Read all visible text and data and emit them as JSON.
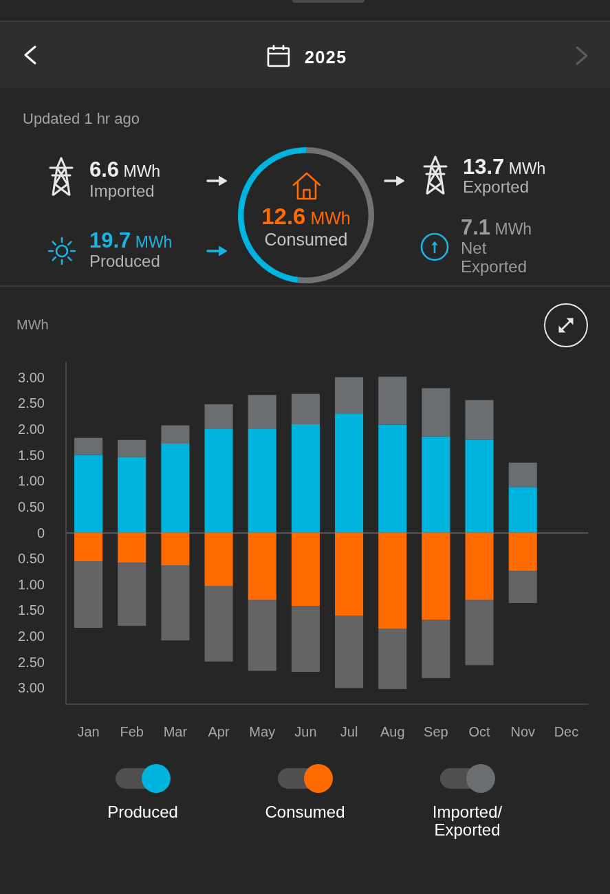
{
  "chart_data": [
    {
      "type": "other",
      "title": "2025",
      "subtitle": "Updated 1 hr ago",
      "annotations": [
        "6.6 MWh",
        "Imported",
        "13.7 MWh",
        "Exported",
        "19.7 MWh",
        "Produced",
        "7.1 MWh",
        "Net Exported"
      ]
    },
    {
      "type": "donut",
      "categories": [
        null,
        null
      ],
      "values": [
        48,
        52
      ],
      "colors": [
        "#00b4e0",
        "#707376"
      ],
      "annotations": [
        "12.6 MWh",
        "Consumed"
      ]
    },
    {
      "type": "bar",
      "ylabel": "MWh",
      "categories": [
        "Jan",
        "Feb",
        "Mar",
        "Apr",
        "May",
        "Jun",
        "Jul",
        "Aug",
        "Sep",
        "Oct",
        "Nov",
        "Dec"
      ],
      "stacked": true,
      "series": [
        {
          "name": "Produced",
          "color": "#00b4e0",
          "values": [
            1.5,
            1.46,
            1.72,
            2.0,
            2.0,
            2.09,
            2.29,
            2.08,
            1.86,
            1.79,
            0.88,
            null
          ]
        },
        {
          "name": "Consumed",
          "color": "#ff6b00",
          "values": [
            -0.55,
            -0.58,
            -0.63,
            -1.03,
            -1.3,
            -1.42,
            -1.6,
            -1.86,
            -1.68,
            -1.3,
            -0.74,
            null
          ]
        },
        {
          "name": "Imported/Exported",
          "color": "#6b6e71",
          "values": [
            0.33,
            0.33,
            0.35,
            0.48,
            0.66,
            0.59,
            0.71,
            0.93,
            0.93,
            0.77,
            0.47,
            null
          ]
        },
        {
          "color": "#646466",
          "values": [
            -1.29,
            -1.22,
            -1.45,
            -1.46,
            -1.37,
            -1.27,
            -1.4,
            -1.16,
            -1.13,
            -1.26,
            -0.62,
            null
          ]
        }
      ],
      "ylim": [
        -3.3,
        3.3
      ],
      "yticks": [
        {
          "value": -3,
          "label": "3.00"
        },
        {
          "value": -2.5,
          "label": "2.50"
        },
        {
          "value": -2,
          "label": "2.00"
        },
        {
          "value": -1.5,
          "label": "1.50"
        },
        {
          "value": -1,
          "label": "1.00"
        },
        {
          "value": -0.5,
          "label": "0.50"
        },
        0,
        {
          "value": 0.5,
          "label": "0.50"
        },
        {
          "value": 1,
          "label": "1.00"
        },
        {
          "value": 1.5,
          "label": "1.50"
        },
        {
          "value": 2,
          "label": "2.00"
        },
        {
          "value": 2.5,
          "label": "2.50"
        },
        {
          "value": 3,
          "label": "3.00"
        }
      ],
      "legend": "bottom"
    }
  ]
}
